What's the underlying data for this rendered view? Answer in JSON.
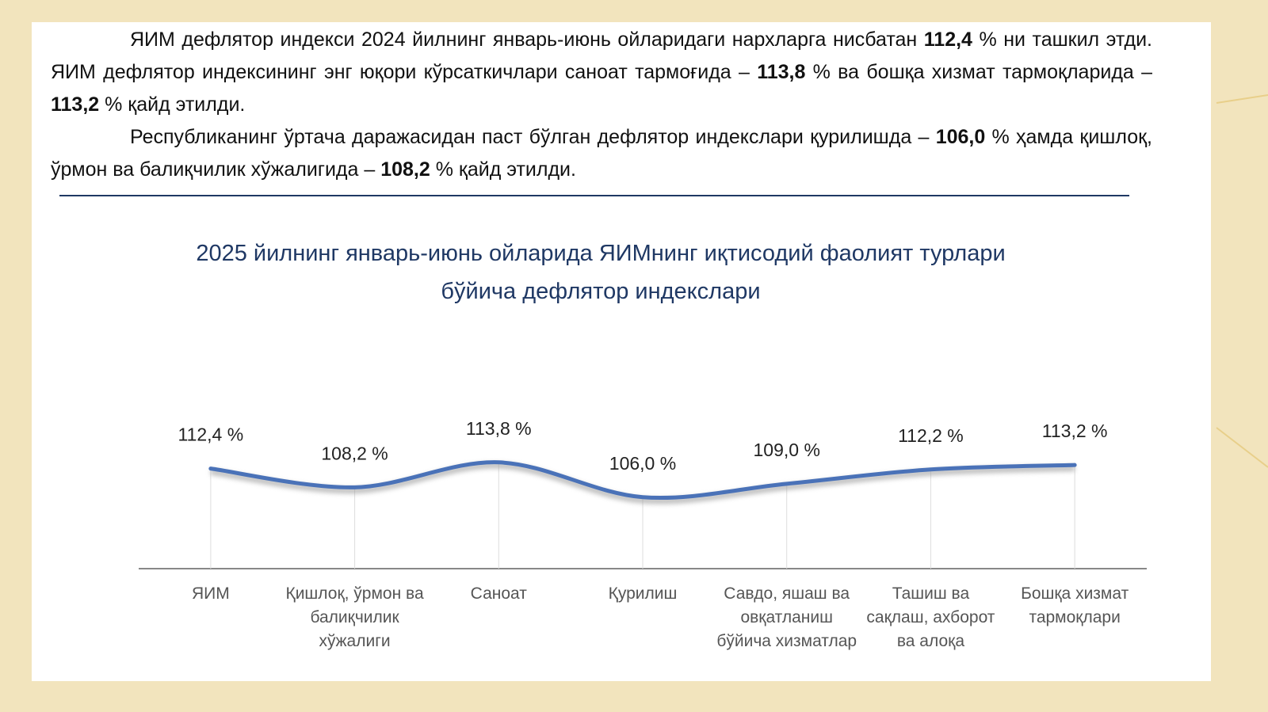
{
  "text": [
    {
      "runs": [
        {
          "text": "ЯИМ дефлятор индекси 2024 йилнинг январь-июнь ойларидаги нархларга нисбатан ",
          "bold": false
        },
        {
          "text": "112,4",
          "bold": true
        },
        {
          "text": " % ни ташкил этди. ЯИМ дефлятор индексининг энг юқори кўрсаткичлари саноат тармоғида – ",
          "bold": false
        },
        {
          "text": "113,8",
          "bold": true
        },
        {
          "text": " % ва бошқа хизмат тармоқларида – ",
          "bold": false
        },
        {
          "text": "113,2",
          "bold": true
        },
        {
          "text": " % қайд этилди.",
          "bold": false
        }
      ]
    },
    {
      "runs": [
        {
          "text": "Республиканинг ўртача даражасидан паст бўлган дефлятор индекслари қурилишда – ",
          "bold": false
        },
        {
          "text": "106,0",
          "bold": true
        },
        {
          "text": " % ҳамда қишлоқ, ўрмон ва балиқчилик хўжалигида – ",
          "bold": false
        },
        {
          "text": "108,2",
          "bold": true
        },
        {
          "text": " % қайд этилди.",
          "bold": false
        }
      ]
    }
  ],
  "chart_data": {
    "type": "line",
    "title": "2025 йилнинг январь-июнь ойларида ЯИМнинг иқтисодий фаолият турлари бўйича дефлятор индекслари",
    "categories": [
      "ЯИМ",
      "Қишлоқ, ўрмон ва балиқчилик хўжалиги",
      "Саноат",
      "Қурилиш",
      "Савдо, яшаш ва овқатланиш бўйича хизматлар",
      "Ташиш ва сақлаш, ахборот ва алоқа",
      "Бошқа хизмат тармоқлари"
    ],
    "values": [
      112.4,
      108.2,
      113.8,
      106.0,
      109.0,
      112.2,
      113.2
    ],
    "value_labels": [
      "112,4 %",
      "108,2 %",
      "113,8 %",
      "106,0 %",
      "109,0 %",
      "112,2 %",
      "113,2 %"
    ],
    "color": "#4a72b8",
    "ylim": [
      90,
      140
    ]
  }
}
